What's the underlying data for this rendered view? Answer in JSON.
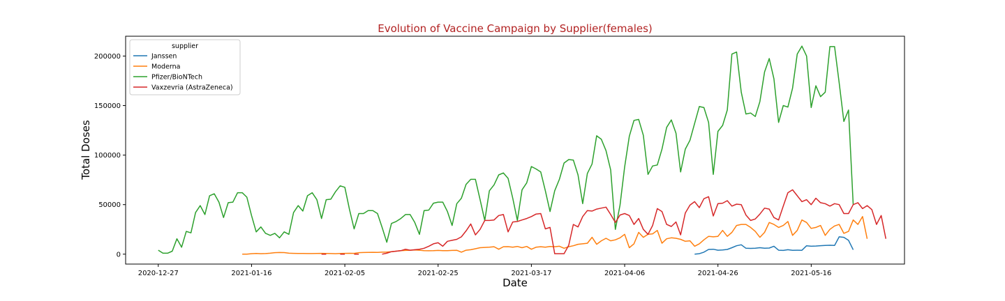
{
  "chart_data": {
    "type": "line",
    "title": "Evolution of Vaccine Campaign by Supplier(females)",
    "xlabel": "Date",
    "ylabel": "Total Doses",
    "xlim": [
      "2020-12-20",
      "2021-06-05"
    ],
    "ylim": [
      -10000,
      220000
    ],
    "x_ticks": [
      "2020-12-27",
      "2021-01-16",
      "2021-02-05",
      "2021-02-25",
      "2021-03-17",
      "2021-04-06",
      "2021-04-26",
      "2021-05-16"
    ],
    "y_ticks": [
      0,
      50000,
      100000,
      150000,
      200000
    ],
    "grid": false,
    "legend": {
      "title": "supplier",
      "position": "top-left"
    },
    "colors": {
      "title": "#b22222",
      "Janssen": "#1f77b4",
      "Moderna": "#ff7f0e",
      "Pfizer/BioNTech": "#2ca02c",
      "Vaxzevria (AstraZeneca)": "#d62728"
    },
    "series": [
      {
        "name": "Janssen",
        "start": "2021-04-21",
        "values": [
          0,
          500,
          2000,
          4800,
          5000,
          4000,
          4200,
          4800,
          6500,
          8500,
          9500,
          6000,
          5800,
          6000,
          6500,
          6000,
          6200,
          8000,
          4000,
          3800,
          4500,
          3900,
          4000,
          3900,
          8500,
          8000,
          8200,
          8600,
          8800,
          9000,
          8800,
          17500,
          17000,
          14000,
          4500
        ]
      },
      {
        "name": "Moderna",
        "start": "2021-01-14",
        "values": [
          0,
          0,
          500,
          700,
          500,
          600,
          1000,
          1500,
          1700,
          1600,
          1000,
          800,
          700,
          700,
          600,
          600,
          700,
          800,
          700,
          600,
          500,
          700,
          800,
          900,
          800,
          1500,
          1700,
          1800,
          1900,
          1800,
          2000,
          2200,
          2500,
          3000,
          3500,
          3800,
          4000,
          4200,
          4000,
          3600,
          3400,
          3500,
          3800,
          3600,
          3500,
          3800,
          3900,
          2000,
          4000,
          4500,
          5500,
          6500,
          6800,
          7000,
          7500,
          5000,
          7500,
          7600,
          7000,
          7800,
          6500,
          7800,
          5000,
          7000,
          7500,
          7000,
          7800,
          7500,
          8000,
          6000,
          7500,
          8500,
          10000,
          10500,
          11000,
          17000,
          10000,
          13500,
          16000,
          13500,
          14500,
          16500,
          20000,
          6500,
          10500,
          22000,
          17000,
          20000,
          20500,
          24000,
          11000,
          15500,
          16500,
          16000,
          15000,
          13000,
          13500,
          8000,
          10500,
          14500,
          18000,
          17500,
          18000,
          24000,
          18000,
          22000,
          29000,
          30000,
          30000,
          27000,
          23000,
          17000,
          22000,
          32000,
          30000,
          27000,
          29000,
          33000,
          19000,
          24000,
          34500,
          32000,
          26000,
          27000,
          29000,
          19000,
          25000,
          28500,
          30000,
          21000,
          23000,
          34500,
          30000,
          38000,
          15500
        ]
      },
      {
        "name": "Pfizer/BioNTech",
        "start": "2020-12-27",
        "values": [
          4000,
          1000,
          1000,
          3000,
          15500,
          7000,
          23000,
          21500,
          42000,
          49000,
          40000,
          59000,
          61000,
          52500,
          37000,
          52000,
          52500,
          62000,
          62000,
          57500,
          39000,
          22500,
          27500,
          21000,
          19000,
          21000,
          16500,
          22500,
          20000,
          42000,
          49000,
          43500,
          59000,
          62000,
          55000,
          36000,
          55000,
          55500,
          63000,
          69000,
          67500,
          45000,
          25500,
          41000,
          41000,
          44000,
          44000,
          41000,
          27000,
          12000,
          31000,
          33000,
          36000,
          40000,
          40000,
          32000,
          20000,
          44000,
          44500,
          51500,
          52500,
          52500,
          43000,
          29000,
          51000,
          56500,
          70500,
          75500,
          75500,
          55000,
          34000,
          64000,
          70000,
          80000,
          82000,
          76500,
          56500,
          34000,
          65000,
          72000,
          88500,
          86000,
          83000,
          64000,
          43000,
          64000,
          75500,
          92000,
          95500,
          95000,
          80000,
          51000,
          81500,
          91000,
          119500,
          116000,
          104500,
          85000,
          25000,
          49500,
          88000,
          119000,
          135000,
          136000,
          120000,
          80500,
          89000,
          90000,
          106000,
          128000,
          135500,
          122000,
          83000,
          106000,
          115000,
          132000,
          149000,
          148000,
          133000,
          80500,
          124000,
          130000,
          145500,
          202000,
          204000,
          163500,
          141500,
          142500,
          139000,
          154000,
          184000,
          197500,
          177000,
          133000,
          150000,
          148500,
          167500,
          202000,
          210000,
          200000,
          148000,
          170000,
          159000,
          163500,
          209500,
          209500,
          173000,
          134000,
          145500,
          50000
        ]
      },
      {
        "name": "Vaxzevria (AstraZeneca)",
        "start": "2021-02-13",
        "values": [
          0,
          1000,
          2500,
          3000,
          3500,
          5000,
          4000,
          4500,
          5000,
          6000,
          8000,
          10500,
          11500,
          8000,
          13000,
          14000,
          15000,
          17500,
          23500,
          30500,
          19500,
          25000,
          34000,
          34000,
          34500,
          39000,
          40000,
          22500,
          32500,
          33000,
          34500,
          36000,
          38000,
          40500,
          41000,
          25500,
          27000,
          500,
          500,
          500,
          9000,
          30000,
          27500,
          38000,
          44000,
          43500,
          45500,
          46500,
          47500,
          40000,
          32000,
          39500,
          41000,
          39000,
          30000,
          36000,
          25000,
          20000,
          29000,
          46000,
          43000,
          30000,
          28000,
          32500,
          19500,
          41500,
          49500,
          53000,
          47000,
          56000,
          58000,
          38500,
          51000,
          51500,
          54000,
          48500,
          50500,
          50000,
          39500,
          34000,
          35500,
          40500,
          46500,
          45500,
          37000,
          34500,
          48500,
          62000,
          65000,
          59000,
          53000,
          55000,
          50000,
          56500,
          52000,
          51000,
          48500,
          51000,
          50000,
          41000,
          41000,
          50000,
          52000,
          46000,
          49000,
          45000,
          30000,
          39000,
          15500
        ]
      }
    ],
    "sparse_segments": [
      {
        "name": "Vaxzevria (AstraZeneca)",
        "points": [
          [
            "2021-01-31",
            0
          ],
          [
            "2021-02-01",
            0
          ],
          [
            "2021-02-04",
            0
          ],
          [
            "2021-02-05",
            0
          ],
          [
            "2021-02-07",
            0
          ],
          [
            "2021-02-08",
            0
          ]
        ]
      }
    ]
  }
}
